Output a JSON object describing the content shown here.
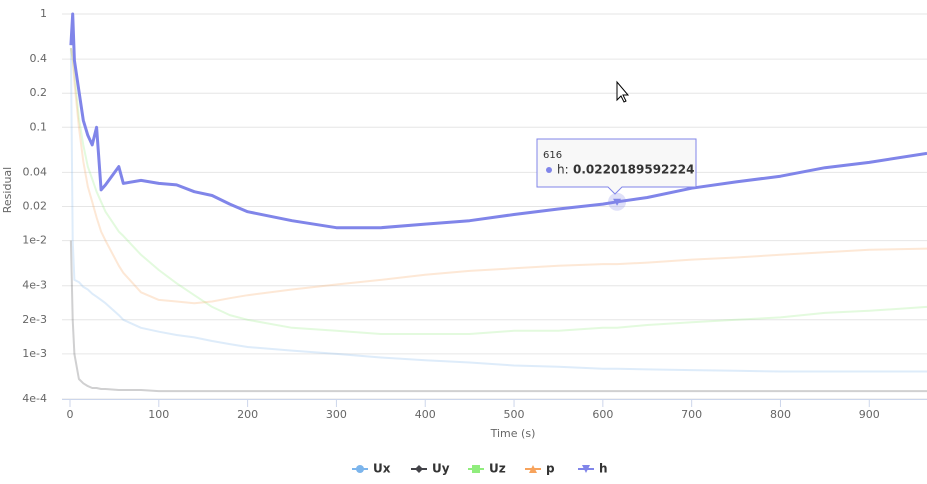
{
  "chart_data": {
    "type": "line",
    "y_label": "Residual",
    "x_label": "Time (s)",
    "log_y": true,
    "grid": true,
    "xlim": [
      -9,
      965
    ],
    "ylim": [
      0.0004,
      1
    ],
    "xticks": [
      0,
      100,
      200,
      300,
      400,
      500,
      600,
      700,
      800,
      900
    ],
    "yticks": [
      1,
      0.4,
      0.2,
      0.1,
      0.04,
      0.02,
      {
        "value": 0.01,
        "label": "1e-2"
      },
      {
        "value": 0.004,
        "label": "4e-3"
      },
      {
        "value": 0.002,
        "label": "2e-3"
      },
      {
        "value": 0.001,
        "label": "1e-3"
      },
      {
        "value": 0.0004,
        "label": "4e-4"
      }
    ],
    "legend": "bottom",
    "x": [
      1,
      3,
      5,
      10,
      15,
      20,
      25,
      30,
      35,
      40,
      55,
      60,
      80,
      100,
      120,
      140,
      160,
      180,
      200,
      250,
      300,
      350,
      400,
      450,
      500,
      550,
      600,
      616,
      650,
      700,
      750,
      800,
      850,
      900,
      965
    ],
    "series": [
      {
        "name": "Ux",
        "color": "#7cb5ec",
        "marker": "circle",
        "values": [
          0.5,
          0.01,
          0.0045,
          0.0043,
          0.0039,
          0.0037,
          0.0034,
          0.0032,
          0.003,
          0.0028,
          0.0022,
          0.002,
          0.0017,
          0.00157,
          0.00147,
          0.0014,
          0.0013,
          0.00122,
          0.00115,
          0.00107,
          0.001,
          0.00093,
          0.00088,
          0.00084,
          0.00079,
          0.00077,
          0.00074,
          0.00074,
          0.00073,
          0.00072,
          0.00071,
          0.0007,
          0.0007,
          0.0007,
          0.0007
        ]
      },
      {
        "name": "Uy",
        "color": "#434348",
        "marker": "diamond",
        "values": [
          0.01,
          0.002,
          0.001,
          0.0006,
          0.00055,
          0.00052,
          0.0005,
          0.0005,
          0.00049,
          0.00049,
          0.00048,
          0.00048,
          0.00048,
          0.00047,
          0.00047,
          0.00047,
          0.00047,
          0.00047,
          0.00047,
          0.00047,
          0.00047,
          0.00047,
          0.00047,
          0.00047,
          0.00047,
          0.00047,
          0.00047,
          0.00047,
          0.00047,
          0.00047,
          0.00047,
          0.00047,
          0.00047,
          0.00047,
          0.00047
        ]
      },
      {
        "name": "Uz",
        "color": "#90ed7d",
        "marker": "square",
        "values": [
          0.5,
          0.4,
          0.3,
          0.12,
          0.07,
          0.045,
          0.035,
          0.027,
          0.022,
          0.018,
          0.012,
          0.011,
          0.0075,
          0.0055,
          0.0042,
          0.0033,
          0.0026,
          0.0022,
          0.002,
          0.0017,
          0.0016,
          0.0015,
          0.0015,
          0.0015,
          0.0016,
          0.0016,
          0.0017,
          0.0017,
          0.0018,
          0.0019,
          0.002,
          0.0021,
          0.0023,
          0.0024,
          0.0026
        ]
      },
      {
        "name": "p",
        "color": "#f7a35c",
        "marker": "triangle",
        "values": [
          0.5,
          0.4,
          0.25,
          0.1,
          0.05,
          0.03,
          0.022,
          0.016,
          0.012,
          0.01,
          0.006,
          0.0052,
          0.0035,
          0.003,
          0.0029,
          0.0028,
          0.0029,
          0.0031,
          0.0033,
          0.0037,
          0.0041,
          0.0045,
          0.005,
          0.0054,
          0.0057,
          0.006,
          0.0062,
          0.0062,
          0.0064,
          0.0068,
          0.0071,
          0.0075,
          0.0079,
          0.0083,
          0.0085
        ]
      },
      {
        "name": "h",
        "color": "#8085e9",
        "marker": "triangle-down",
        "highlighted": true,
        "values": [
          0.53,
          1,
          0.39,
          0.21,
          0.115,
          0.085,
          0.07,
          0.1,
          0.028,
          0.031,
          0.045,
          0.032,
          0.034,
          0.032,
          0.031,
          0.027,
          0.025,
          0.021,
          0.018,
          0.015,
          0.013,
          0.013,
          0.014,
          0.015,
          0.017,
          0.019,
          0.021,
          0.0220189592224,
          0.024,
          0.029,
          0.033,
          0.037,
          0.044,
          0.049,
          0.059
        ]
      }
    ],
    "tooltip": {
      "x": 616,
      "series": "h:",
      "value": 0.0220189592224
    }
  }
}
